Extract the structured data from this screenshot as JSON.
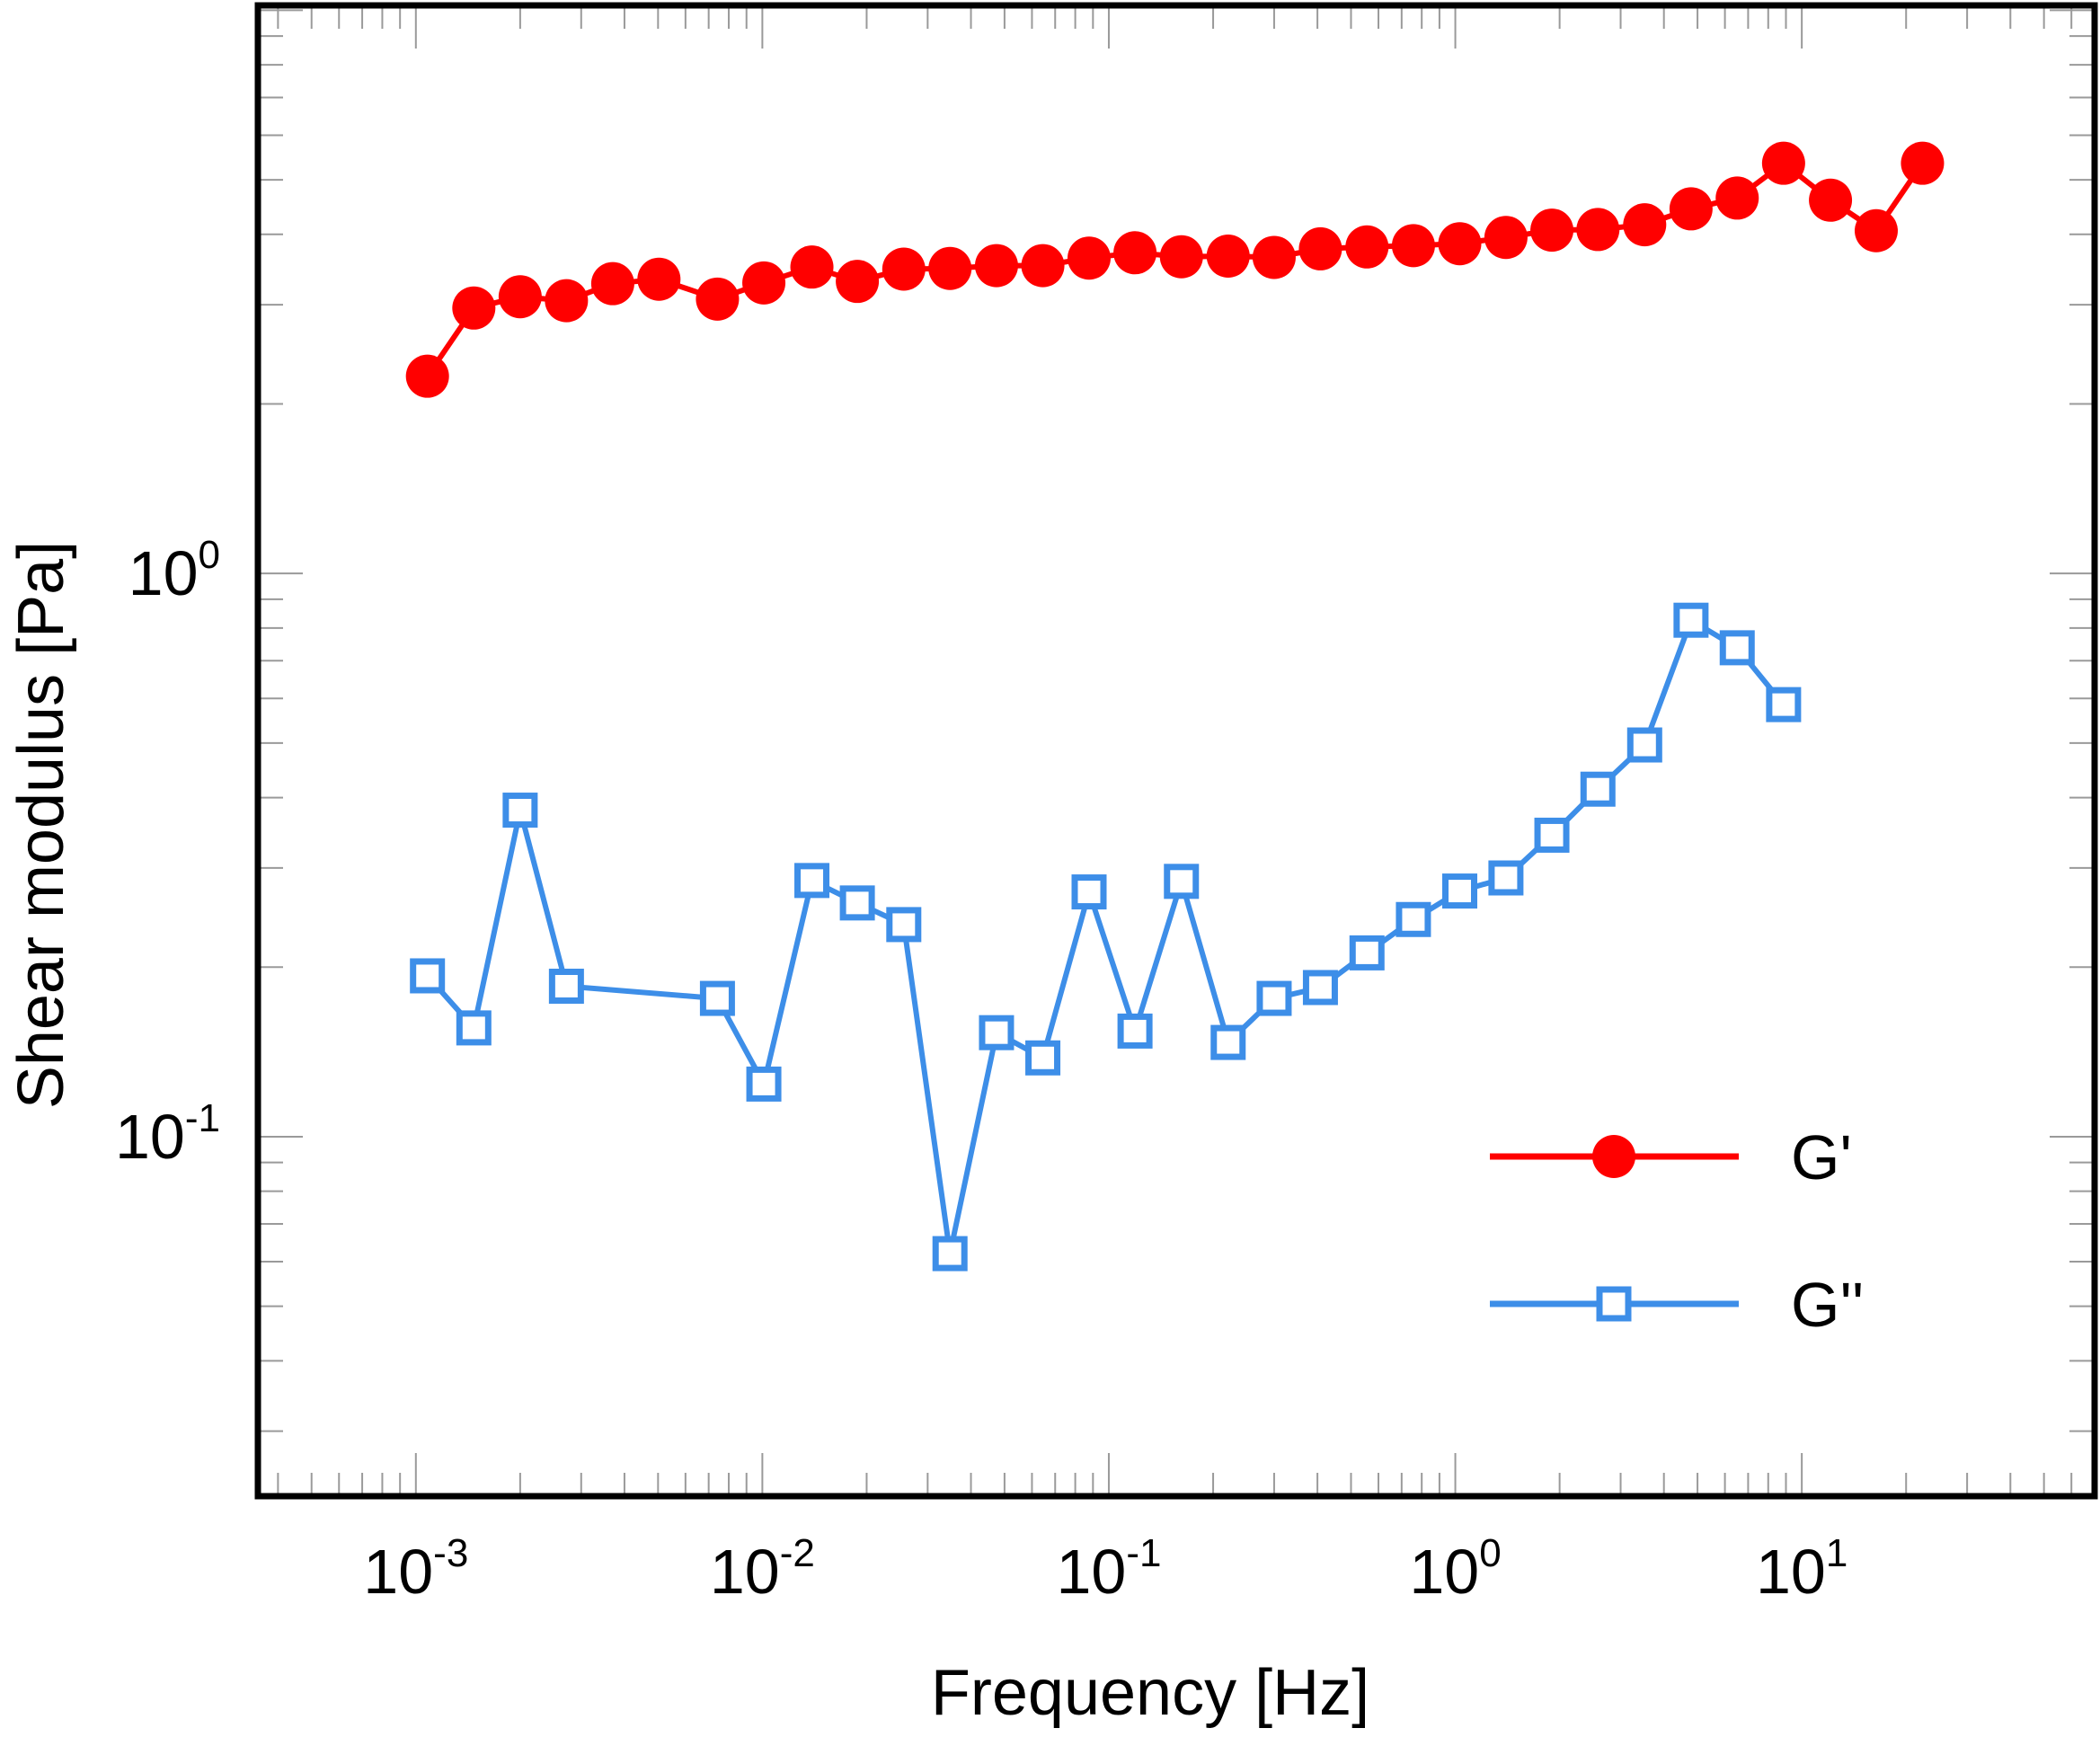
{
  "chart_data": {
    "type": "line",
    "title": "",
    "xlabel": "Frequency [Hz]",
    "ylabel": "Shear modulus [Pa]",
    "xscale": "log",
    "yscale": "log",
    "xlim": [
      0.00035,
      70
    ],
    "ylim": [
      0.023,
      10.2
    ],
    "grid": false,
    "legend_position": "bottom-right",
    "x_tick_labels": [
      {
        "value": 0.001,
        "base": "10",
        "exp": "-3"
      },
      {
        "value": 0.01,
        "base": "10",
        "exp": "-2"
      },
      {
        "value": 0.1,
        "base": "10",
        "exp": "-1"
      },
      {
        "value": 1,
        "base": "10",
        "exp": "0"
      },
      {
        "value": 10,
        "base": "10",
        "exp": "1"
      }
    ],
    "y_tick_labels": [
      {
        "value": 0.1,
        "base": "10",
        "exp": "-1"
      },
      {
        "value": 1,
        "base": "10",
        "exp": "0"
      }
    ],
    "series": [
      {
        "name": "G'",
        "color": "#ff0000",
        "marker": "filled-circle",
        "x": [
          0.00108,
          0.00147,
          0.002,
          0.00272,
          0.0037,
          0.00503,
          0.00742,
          0.0101,
          0.0139,
          0.0188,
          0.0256,
          0.0348,
          0.0474,
          0.0645,
          0.0877,
          0.119,
          0.162,
          0.221,
          0.3,
          0.408,
          0.556,
          0.757,
          1.03,
          1.4,
          1.9,
          2.58,
          3.52,
          4.79,
          6.51,
          8.86,
          12.1,
          16.4,
          22.3
        ],
        "values": [
          2.24,
          2.96,
          3.1,
          3.05,
          3.27,
          3.33,
          3.07,
          3.28,
          3.5,
          3.3,
          3.47,
          3.48,
          3.52,
          3.52,
          3.63,
          3.71,
          3.65,
          3.66,
          3.64,
          3.77,
          3.8,
          3.82,
          3.85,
          3.95,
          4.07,
          4.08,
          4.16,
          4.44,
          4.64,
          5.35,
          4.6,
          4.06,
          5.35
        ]
      },
      {
        "name": "G''",
        "color": "#3d8ee8",
        "marker": "open-square",
        "x": [
          0.00108,
          0.00147,
          0.002,
          0.00272,
          0.00742,
          0.0101,
          0.0139,
          0.0188,
          0.0256,
          0.0348,
          0.0474,
          0.0645,
          0.0877,
          0.119,
          0.162,
          0.221,
          0.3,
          0.408,
          0.556,
          0.757,
          1.03,
          1.4,
          1.9,
          2.58,
          3.52,
          4.79,
          6.51,
          8.86
        ],
        "values": [
          0.193,
          0.156,
          0.38,
          0.185,
          0.176,
          0.124,
          0.285,
          0.26,
          0.238,
          0.062,
          0.153,
          0.138,
          0.272,
          0.154,
          0.284,
          0.147,
          0.176,
          0.184,
          0.212,
          0.243,
          0.273,
          0.288,
          0.343,
          0.414,
          0.496,
          0.826,
          0.738,
          0.585
        ]
      }
    ]
  },
  "legend": {
    "items": [
      {
        "label": "G'",
        "color": "#ff0000"
      },
      {
        "label": "G''",
        "color": "#3d8ee8"
      }
    ]
  }
}
